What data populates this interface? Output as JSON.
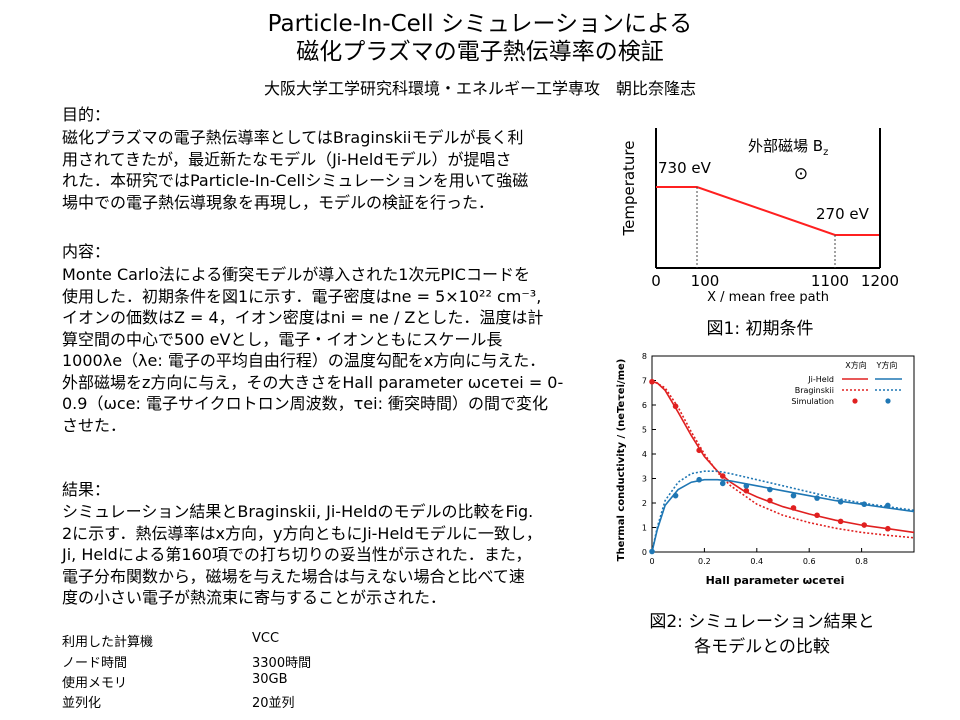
{
  "header": {
    "title_line1": "Particle-In-Cell シミュレーションによる",
    "title_line2": "磁化プラズマの電子熱伝導率の検証",
    "affiliation": "大阪大学工学研究科環境・エネルギー工学専攻　朝比奈隆志"
  },
  "purpose": {
    "heading": "目的：",
    "lines": [
      "磁化プラズマの電子熱伝導率としてはBraginskiiモデルが長く利",
      "用されてきたが，最近新たなモデル（Ji-Heldモデル）が提唱さ",
      "れた．本研究ではParticle-In-Cellシミュレーションを用いて強磁",
      "場中での電子熱伝導現象を再現し，モデルの検証を行った．"
    ]
  },
  "content": {
    "heading": "内容：",
    "lines": [
      "Monte Carlo法による衝突モデルが導入された1次元PICコードを",
      "使用した．初期条件を図1に示す．電子密度はne = 5×10²² cm⁻³,",
      "イオンの価数はZ = 4，イオン密度はni = ne / Zとした．温度は計",
      "算空間の中心で500 eVとし，電子・イオンともにスケール長",
      "1000λe（λe: 電子の平均自由行程）の温度勾配をx方向に与えた．",
      "外部磁場をz方向に与え，その大きさをHall parameter ωceτei = 0-",
      "0.9（ωce: 電子サイクロトロン周波数，τei: 衝突時間）の間で変化",
      "させた．"
    ]
  },
  "result": {
    "heading": "結果：",
    "lines": [
      "シミュレーション結果とBraginskii, Ji-Heldのモデルの比較をFig.",
      "2に示す．熱伝導率はx方向，y方向ともにJi-Heldモデルに一致し，",
      "Ji, Heldによる第160項での打ち切りの妥当性が示された．また，",
      "電子分布関数から，磁場を与えた場合は与えない場合と比べて速",
      "度の小さい電子が熱流束に寄与することが示された．"
    ]
  },
  "resources": [
    {
      "label": "利用した計算機",
      "value": "VCC"
    },
    {
      "label": "ノード時間",
      "value": "3300時間"
    },
    {
      "label": "使用メモリ",
      "value": "30GB"
    },
    {
      "label": "並列化",
      "value": "20並列"
    }
  ],
  "fig1": {
    "caption": "図1: 初期条件",
    "ylabel": "Temperature",
    "xlabel": "X / mean free path",
    "t_high": "730 eV",
    "t_low": "270 eV",
    "field_label": "外部磁場 B",
    "field_sub": "z",
    "field_symbol": "⊙",
    "xticks": [
      "0",
      "100",
      "1100",
      "1200"
    ],
    "line_color": "#ff2020"
  },
  "fig2": {
    "caption_line1": "図2: シミュレーション結果と",
    "caption_line2": "各モデルとの比較",
    "xlabel": "Hall parameter ωceτei",
    "ylabel": "Thermal conductivity / (neTeτei/me)",
    "legend": {
      "col_x": "X方向",
      "col_y": "Y方向",
      "rows": [
        "Ji-Held",
        "Braginskii",
        "Simulation"
      ]
    },
    "colors": {
      "x": "#e02020",
      "y": "#1f77b4"
    }
  },
  "chart_data": {
    "type": "line",
    "xlabel": "Hall parameter ωceτei",
    "ylabel": "Thermal conductivity / (neTeτei/me)",
    "xlim": [
      0,
      1
    ],
    "ylim": [
      0,
      8
    ],
    "xticks": [
      0,
      0.2,
      0.4,
      0.6,
      0.8
    ],
    "yticks": [
      0,
      1,
      2,
      3,
      4,
      5,
      6,
      7,
      8
    ],
    "legend_position": "top-right",
    "series": [
      {
        "name": "Ji-Held X方向",
        "style": "solid",
        "color": "#e02020",
        "x": [
          0,
          0.02,
          0.05,
          0.1,
          0.15,
          0.2,
          0.25,
          0.3,
          0.35,
          0.4,
          0.5,
          0.6,
          0.7,
          0.8,
          0.9,
          1.0
        ],
        "y": [
          6.95,
          6.9,
          6.6,
          5.7,
          4.75,
          3.9,
          3.3,
          2.85,
          2.5,
          2.25,
          1.85,
          1.55,
          1.3,
          1.1,
          0.95,
          0.8
        ]
      },
      {
        "name": "Braginskii X方向",
        "style": "dotted",
        "color": "#e02020",
        "x": [
          0,
          0.05,
          0.1,
          0.15,
          0.2,
          0.25,
          0.3,
          0.4,
          0.5,
          0.6,
          0.7,
          0.8,
          0.9,
          1.0
        ],
        "y": [
          7.0,
          6.7,
          5.9,
          4.9,
          4.0,
          3.25,
          2.7,
          1.95,
          1.5,
          1.2,
          0.97,
          0.8,
          0.68,
          0.58
        ]
      },
      {
        "name": "Simulation X方向",
        "style": "marker",
        "color": "#e02020",
        "x": [
          0.0,
          0.09,
          0.18,
          0.27,
          0.36,
          0.45,
          0.54,
          0.63,
          0.72,
          0.81,
          0.9
        ],
        "y": [
          6.95,
          5.95,
          4.15,
          3.1,
          2.5,
          2.1,
          1.8,
          1.5,
          1.25,
          1.1,
          0.95
        ]
      },
      {
        "name": "Ji-Held Y方向",
        "style": "solid",
        "color": "#1f77b4",
        "x": [
          0,
          0.02,
          0.05,
          0.1,
          0.15,
          0.2,
          0.25,
          0.3,
          0.4,
          0.5,
          0.6,
          0.7,
          0.8,
          0.9,
          1.0
        ],
        "y": [
          0,
          0.9,
          1.9,
          2.55,
          2.85,
          2.95,
          2.95,
          2.9,
          2.7,
          2.5,
          2.3,
          2.1,
          1.95,
          1.8,
          1.65
        ]
      },
      {
        "name": "Braginskii Y方向",
        "style": "dotted",
        "color": "#1f77b4",
        "x": [
          0,
          0.02,
          0.05,
          0.1,
          0.15,
          0.2,
          0.25,
          0.3,
          0.4,
          0.5,
          0.6,
          0.7,
          0.8,
          0.9,
          1.0
        ],
        "y": [
          0,
          1.0,
          2.1,
          2.85,
          3.2,
          3.3,
          3.3,
          3.2,
          2.95,
          2.7,
          2.45,
          2.2,
          2.0,
          1.85,
          1.7
        ]
      },
      {
        "name": "Simulation Y方向",
        "style": "marker",
        "color": "#1f77b4",
        "x": [
          0.0,
          0.09,
          0.18,
          0.27,
          0.36,
          0.45,
          0.54,
          0.63,
          0.72,
          0.81,
          0.9
        ],
        "y": [
          0.02,
          2.3,
          2.95,
          2.8,
          2.7,
          2.55,
          2.3,
          2.2,
          2.05,
          1.95,
          1.9
        ]
      }
    ]
  }
}
